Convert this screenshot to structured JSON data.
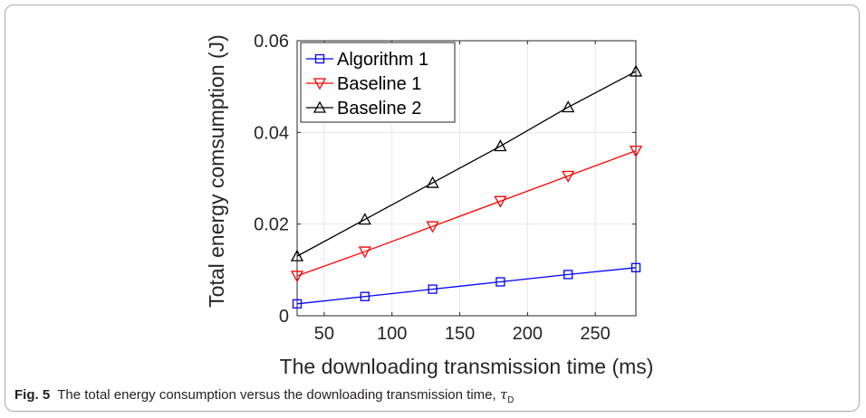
{
  "chart_data": {
    "type": "line",
    "xlabel": "The downloading transmission time (ms)",
    "ylabel": "Total energy comsumption (J)",
    "xlim": [
      30,
      280
    ],
    "ylim": [
      0,
      0.06
    ],
    "xticks": [
      50,
      100,
      150,
      200,
      250
    ],
    "yticks": [
      0,
      0.02,
      0.04,
      0.06
    ],
    "ytick_labels": [
      "0",
      "0.02",
      "0.04",
      "0.06"
    ],
    "grid": true,
    "legend_position": "top-left",
    "x": [
      30,
      80,
      130,
      180,
      230,
      280
    ],
    "series": [
      {
        "name": "Algorithm 1",
        "color": "#0000ff",
        "marker": "square",
        "values": [
          0.0026,
          0.0042,
          0.0058,
          0.0074,
          0.009,
          0.0105
        ]
      },
      {
        "name": "Baseline 1",
        "color": "#ff0000",
        "marker": "triangle-down",
        "values": [
          0.0087,
          0.014,
          0.0195,
          0.025,
          0.0305,
          0.036
        ]
      },
      {
        "name": "Baseline 2",
        "color": "#000000",
        "marker": "triangle-up",
        "values": [
          0.013,
          0.021,
          0.029,
          0.037,
          0.0455,
          0.0533
        ]
      }
    ]
  },
  "caption": {
    "label": "Fig. 5",
    "text": "The total energy consumption versus the downloading transmission time, ",
    "symbol": "τ",
    "subscript": "D"
  }
}
